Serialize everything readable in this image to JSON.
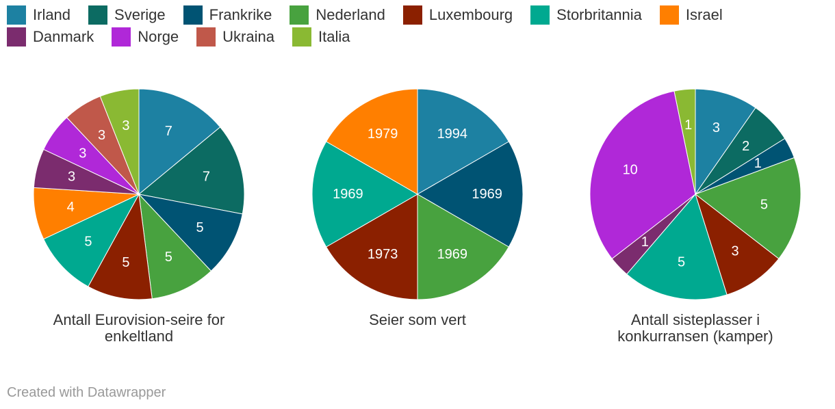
{
  "legend": [
    {
      "name": "Irland",
      "color": "#1d81a2"
    },
    {
      "name": "Sverige",
      "color": "#0c6b62"
    },
    {
      "name": "Frankrike",
      "color": "#005373"
    },
    {
      "name": "Nederland",
      "color": "#48a23f"
    },
    {
      "name": "Luxembourg",
      "color": "#8b2000"
    },
    {
      "name": "Storbritannia",
      "color": "#00a990"
    },
    {
      "name": "Israel",
      "color": "#ff7f00"
    },
    {
      "name": "Danmark",
      "color": "#7b2c6e"
    },
    {
      "name": "Norge",
      "color": "#b028d8"
    },
    {
      "name": "Ukraina",
      "color": "#c0584a"
    },
    {
      "name": "Italia",
      "color": "#8ab933"
    }
  ],
  "chart_data": [
    {
      "type": "pie",
      "title": "Antall Eurovision-seire for enkeltland",
      "slices": [
        {
          "name": "Irland",
          "value": 7,
          "label": "7"
        },
        {
          "name": "Sverige",
          "value": 7,
          "label": "7"
        },
        {
          "name": "Frankrike",
          "value": 5,
          "label": "5"
        },
        {
          "name": "Nederland",
          "value": 5,
          "label": "5"
        },
        {
          "name": "Luxembourg",
          "value": 5,
          "label": "5"
        },
        {
          "name": "Storbritannia",
          "value": 5,
          "label": "5"
        },
        {
          "name": "Israel",
          "value": 4,
          "label": "4"
        },
        {
          "name": "Danmark",
          "value": 3,
          "label": "3"
        },
        {
          "name": "Norge",
          "value": 3,
          "label": "3"
        },
        {
          "name": "Ukraina",
          "value": 3,
          "label": "3"
        },
        {
          "name": "Italia",
          "value": 3,
          "label": "3"
        }
      ]
    },
    {
      "type": "pie",
      "title": "Seier som vert",
      "slices": [
        {
          "name": "Irland",
          "value": 1,
          "label": "1994"
        },
        {
          "name": "Frankrike",
          "value": 1,
          "label": "1969"
        },
        {
          "name": "Nederland",
          "value": 1,
          "label": "1969"
        },
        {
          "name": "Luxembourg",
          "value": 1,
          "label": "1973"
        },
        {
          "name": "Storbritannia",
          "value": 1,
          "label": "1969"
        },
        {
          "name": "Israel",
          "value": 1,
          "label": "1979"
        }
      ]
    },
    {
      "type": "pie",
      "title": "Antall sisteplasser i konkurransen (kamper)",
      "slices": [
        {
          "name": "Irland",
          "value": 3,
          "label": "3"
        },
        {
          "name": "Sverige",
          "value": 2,
          "label": "2"
        },
        {
          "name": "Frankrike",
          "value": 1,
          "label": "1"
        },
        {
          "name": "Nederland",
          "value": 5,
          "label": "5"
        },
        {
          "name": "Luxembourg",
          "value": 3,
          "label": "3"
        },
        {
          "name": "Storbritannia",
          "value": 5,
          "label": "5"
        },
        {
          "name": "Danmark",
          "value": 1,
          "label": "1"
        },
        {
          "name": "Norge",
          "value": 10,
          "label": "10"
        },
        {
          "name": "Italia",
          "value": 1,
          "label": "1"
        }
      ]
    }
  ],
  "footer": "Created with Datawrapper"
}
